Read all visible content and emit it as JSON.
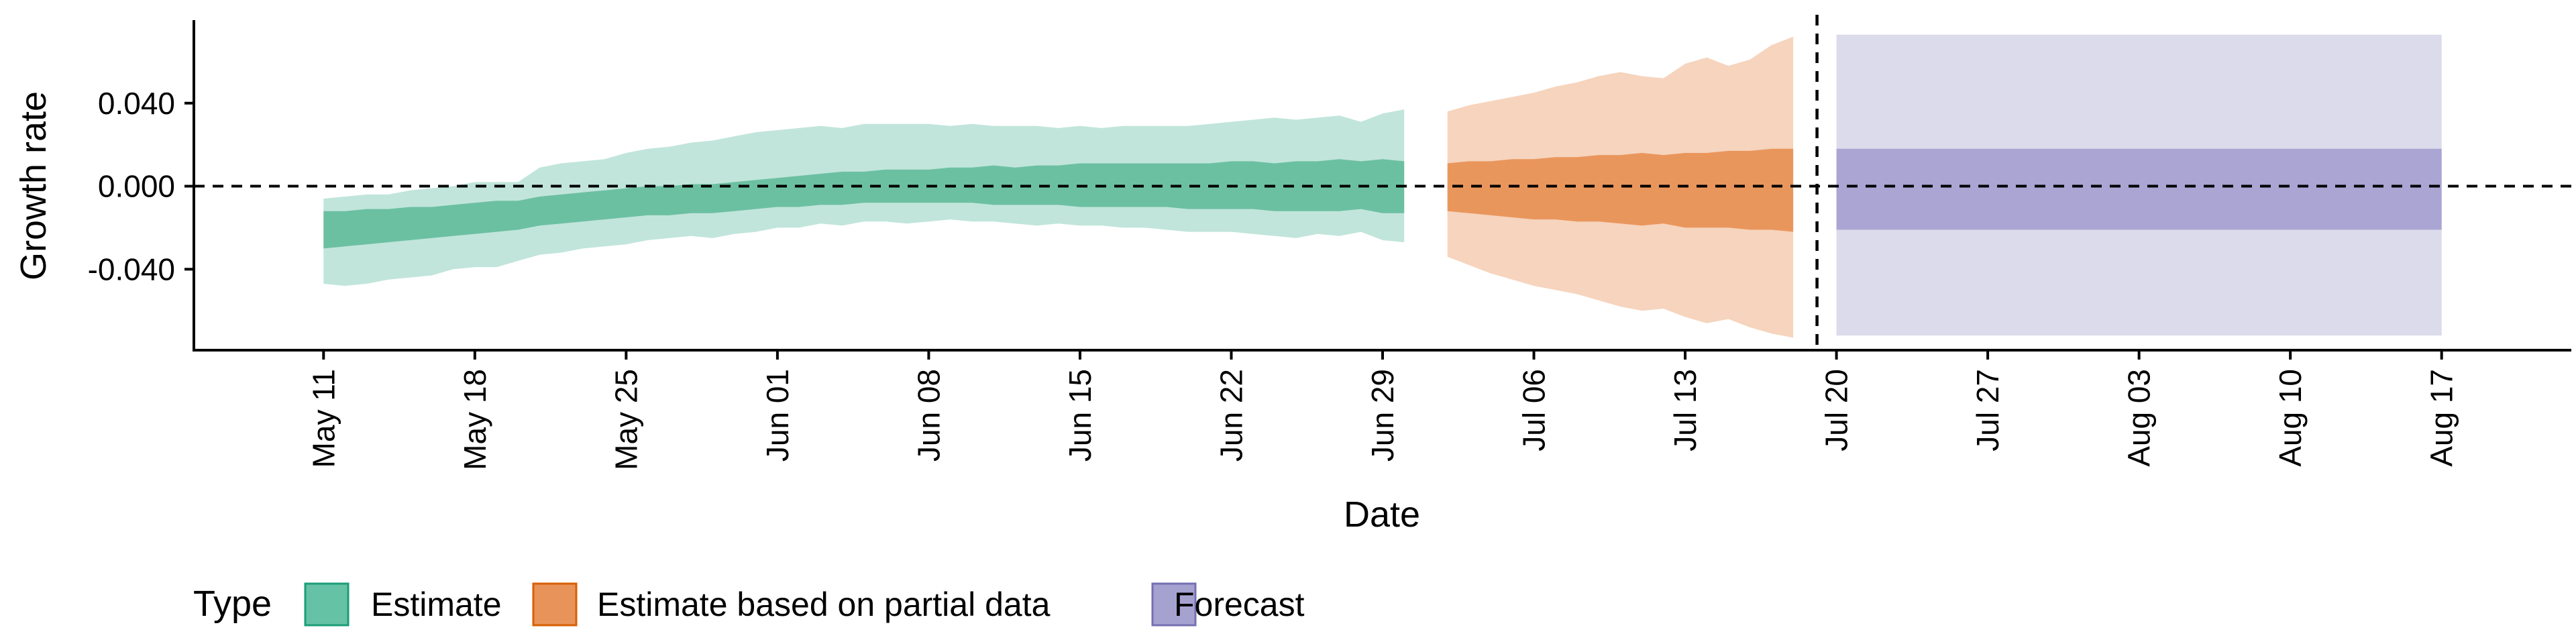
{
  "chart_data": {
    "type": "area",
    "xlabel": "Date",
    "ylabel": "Growth rate",
    "x_tick_labels": [
      "May 11",
      "May 18",
      "May 25",
      "Jun 01",
      "Jun 08",
      "Jun 15",
      "Jun 22",
      "Jun 29",
      "Jul 06",
      "Jul 13",
      "Jul 20",
      "Jul 27",
      "Aug 03",
      "Aug 10",
      "Aug 17"
    ],
    "x_tick_days": [
      10,
      17,
      24,
      31,
      38,
      45,
      52,
      59,
      66,
      73,
      80,
      87,
      94,
      101,
      108
    ],
    "x_range_days": [
      4,
      114
    ],
    "x_origin_date": "2020-05-01",
    "y_ticks": [
      -0.04,
      0.0,
      0.04
    ],
    "y_tick_labels": [
      "-0.040",
      "0.000",
      "0.040"
    ],
    "ylim": [
      -0.079,
      0.08
    ],
    "reference_lines": {
      "horizontal_y": 0.0,
      "vertical_x_day": 79.1
    },
    "grid": false,
    "legend": {
      "title": "Type",
      "position": "bottom-left",
      "entries": [
        {
          "label": "Estimate",
          "color": "#66c2a5"
        },
        {
          "label": "Estimate based on partial data",
          "color": "#e8935a"
        },
        {
          "label": "Forecast",
          "color": "#a6a2d0"
        }
      ]
    },
    "colors": {
      "estimate_inner": "#6cc0a2",
      "estimate_outer": "#c1e5db",
      "partial_inner": "#e9965d",
      "partial_outer": "#f6d4bd",
      "forecast_inner": "#aaa5d3",
      "forecast_outer": "#dcdbeb",
      "legend_estimate_border": "#1b9e77",
      "legend_partial_border": "#d95f02",
      "legend_forecast_border": "#7570b3"
    },
    "series": [
      {
        "name": "Estimate",
        "x": [
          10,
          11,
          12,
          13,
          14,
          15,
          16,
          17,
          18,
          19,
          20,
          21,
          22,
          23,
          24,
          25,
          26,
          27,
          28,
          29,
          30,
          31,
          32,
          33,
          34,
          35,
          36,
          37,
          38,
          39,
          40,
          41,
          42,
          43,
          44,
          45,
          46,
          47,
          48,
          49,
          50,
          51,
          52,
          53,
          54,
          55,
          56,
          57,
          58,
          59,
          60
        ],
        "upper_90": [
          -0.006,
          -0.005,
          -0.004,
          -0.004,
          -0.002,
          -0.001,
          0.0,
          0.002,
          0.002,
          0.002,
          0.009,
          0.011,
          0.012,
          0.013,
          0.016,
          0.018,
          0.019,
          0.021,
          0.022,
          0.024,
          0.026,
          0.027,
          0.028,
          0.029,
          0.028,
          0.03,
          0.03,
          0.03,
          0.03,
          0.029,
          0.03,
          0.029,
          0.029,
          0.029,
          0.028,
          0.029,
          0.028,
          0.029,
          0.029,
          0.029,
          0.029,
          0.03,
          0.031,
          0.032,
          0.033,
          0.032,
          0.033,
          0.034,
          0.031,
          0.035,
          0.037
        ],
        "lower_90": [
          -0.047,
          -0.048,
          -0.047,
          -0.045,
          -0.044,
          -0.043,
          -0.04,
          -0.039,
          -0.039,
          -0.036,
          -0.033,
          -0.032,
          -0.03,
          -0.029,
          -0.028,
          -0.026,
          -0.025,
          -0.024,
          -0.025,
          -0.023,
          -0.022,
          -0.02,
          -0.02,
          -0.018,
          -0.019,
          -0.017,
          -0.017,
          -0.018,
          -0.017,
          -0.016,
          -0.017,
          -0.017,
          -0.018,
          -0.019,
          -0.018,
          -0.019,
          -0.019,
          -0.02,
          -0.02,
          -0.021,
          -0.022,
          -0.022,
          -0.022,
          -0.023,
          -0.024,
          -0.025,
          -0.023,
          -0.024,
          -0.022,
          -0.026,
          -0.027
        ],
        "upper_50": [
          -0.012,
          -0.012,
          -0.011,
          -0.011,
          -0.01,
          -0.01,
          -0.009,
          -0.008,
          -0.007,
          -0.007,
          -0.005,
          -0.004,
          -0.003,
          -0.002,
          -0.001,
          0.0,
          0.0,
          0.001,
          0.001,
          0.002,
          0.003,
          0.004,
          0.005,
          0.006,
          0.007,
          0.007,
          0.008,
          0.008,
          0.008,
          0.009,
          0.009,
          0.01,
          0.009,
          0.01,
          0.01,
          0.011,
          0.011,
          0.011,
          0.011,
          0.011,
          0.011,
          0.011,
          0.012,
          0.012,
          0.011,
          0.012,
          0.012,
          0.013,
          0.012,
          0.013,
          0.012
        ],
        "lower_50": [
          -0.03,
          -0.029,
          -0.028,
          -0.027,
          -0.026,
          -0.025,
          -0.024,
          -0.023,
          -0.022,
          -0.021,
          -0.019,
          -0.018,
          -0.017,
          -0.016,
          -0.015,
          -0.014,
          -0.014,
          -0.013,
          -0.013,
          -0.012,
          -0.011,
          -0.01,
          -0.01,
          -0.009,
          -0.009,
          -0.008,
          -0.008,
          -0.008,
          -0.008,
          -0.008,
          -0.008,
          -0.009,
          -0.009,
          -0.009,
          -0.009,
          -0.01,
          -0.01,
          -0.01,
          -0.01,
          -0.01,
          -0.011,
          -0.011,
          -0.011,
          -0.011,
          -0.012,
          -0.012,
          -0.012,
          -0.012,
          -0.011,
          -0.013,
          -0.013
        ]
      },
      {
        "name": "Estimate based on partial data",
        "x": [
          62,
          63,
          64,
          65,
          66,
          67,
          68,
          69,
          70,
          71,
          72,
          73,
          74,
          75,
          76,
          77,
          78
        ],
        "upper_90": [
          0.036,
          0.039,
          0.041,
          0.043,
          0.045,
          0.048,
          0.05,
          0.053,
          0.055,
          0.053,
          0.052,
          0.059,
          0.062,
          0.058,
          0.061,
          0.068,
          0.072
        ],
        "lower_90": [
          -0.034,
          -0.038,
          -0.042,
          -0.045,
          -0.048,
          -0.05,
          -0.052,
          -0.055,
          -0.058,
          -0.06,
          -0.059,
          -0.063,
          -0.066,
          -0.064,
          -0.068,
          -0.071,
          -0.073
        ],
        "upper_50": [
          0.011,
          0.012,
          0.012,
          0.013,
          0.013,
          0.014,
          0.014,
          0.015,
          0.015,
          0.016,
          0.015,
          0.016,
          0.016,
          0.017,
          0.017,
          0.018,
          0.018
        ],
        "lower_50": [
          -0.012,
          -0.013,
          -0.014,
          -0.015,
          -0.016,
          -0.016,
          -0.017,
          -0.017,
          -0.018,
          -0.019,
          -0.018,
          -0.02,
          -0.02,
          -0.02,
          -0.021,
          -0.021,
          -0.022
        ]
      },
      {
        "name": "Forecast",
        "x": [
          80,
          108
        ],
        "upper_90": [
          0.073,
          0.073
        ],
        "lower_90": [
          -0.072,
          -0.072
        ],
        "upper_50": [
          0.018,
          0.018
        ],
        "lower_50": [
          -0.021,
          -0.021
        ]
      }
    ]
  }
}
